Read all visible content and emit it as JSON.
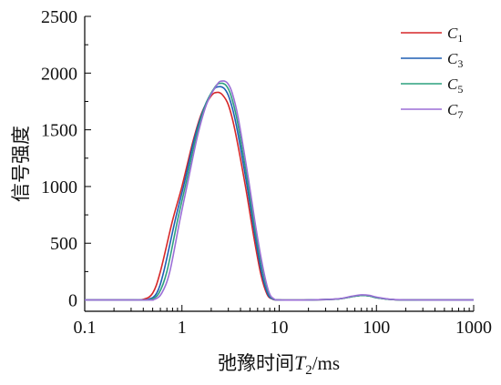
{
  "chart_data": {
    "type": "line",
    "title": "",
    "xlabel_main": "弛豫时间",
    "xlabel_var": "T",
    "xlabel_sub": "2",
    "xlabel_unit": "/ms",
    "ylabel": "信号强度",
    "x_scale": "log",
    "xlim": [
      0.1,
      1000
    ],
    "ylim": [
      -100,
      2500
    ],
    "x_ticks": [
      0.1,
      1,
      10,
      100,
      1000
    ],
    "x_tick_labels": [
      "0.1",
      "1",
      "10",
      "100",
      "1000"
    ],
    "y_ticks": [
      0,
      500,
      1000,
      1500,
      2000,
      2500
    ],
    "y_tick_labels": [
      "0",
      "500",
      "1000",
      "1500",
      "2000",
      "2500"
    ],
    "grid": false,
    "legend_position": "top-right",
    "series": [
      {
        "name": "C",
        "subscript": "1",
        "color": "#d62728",
        "x": [
          0.1,
          0.3,
          0.4,
          0.5,
          0.6,
          0.8,
          1,
          1.3,
          1.6,
          2,
          2.3,
          2.6,
          3,
          3.5,
          4.5,
          5.5,
          6.5,
          7.5,
          8.5,
          10,
          20,
          40,
          55,
          70,
          85,
          100,
          150,
          300,
          1000
        ],
        "y": [
          0,
          0,
          5,
          60,
          250,
          700,
          1000,
          1400,
          1650,
          1800,
          1830,
          1810,
          1720,
          1500,
          1000,
          550,
          220,
          50,
          8,
          0,
          0,
          8,
          28,
          40,
          35,
          20,
          3,
          0,
          0
        ]
      },
      {
        "name": "C",
        "subscript": "3",
        "color": "#1f5fb4",
        "x": [
          0.1,
          0.35,
          0.45,
          0.55,
          0.65,
          0.85,
          1.05,
          1.35,
          1.7,
          2.1,
          2.4,
          2.75,
          3.1,
          3.6,
          4.6,
          5.6,
          6.6,
          7.6,
          8.6,
          10,
          20,
          40,
          55,
          70,
          85,
          100,
          150,
          300,
          1000
        ],
        "y": [
          0,
          0,
          5,
          60,
          250,
          700,
          1020,
          1430,
          1700,
          1850,
          1880,
          1860,
          1770,
          1550,
          1040,
          580,
          240,
          55,
          8,
          0,
          0,
          8,
          28,
          40,
          35,
          20,
          3,
          0,
          0
        ]
      },
      {
        "name": "C",
        "subscript": "5",
        "color": "#2ca07f",
        "x": [
          0.1,
          0.38,
          0.48,
          0.58,
          0.7,
          0.9,
          1.1,
          1.4,
          1.75,
          2.2,
          2.5,
          2.85,
          3.2,
          3.7,
          4.7,
          5.7,
          6.8,
          7.8,
          8.8,
          10,
          20,
          40,
          55,
          70,
          85,
          100,
          150,
          300,
          1000
        ],
        "y": [
          0,
          0,
          5,
          60,
          250,
          700,
          1030,
          1440,
          1720,
          1880,
          1910,
          1890,
          1800,
          1580,
          1060,
          600,
          250,
          60,
          8,
          0,
          0,
          8,
          28,
          40,
          35,
          20,
          3,
          0,
          0
        ]
      },
      {
        "name": "C",
        "subscript": "7",
        "color": "#9b6fd6",
        "x": [
          0.1,
          0.42,
          0.52,
          0.62,
          0.75,
          0.95,
          1.15,
          1.45,
          1.8,
          2.3,
          2.6,
          2.95,
          3.3,
          3.8,
          4.8,
          5.8,
          6.9,
          7.9,
          8.9,
          10,
          20,
          40,
          55,
          70,
          85,
          100,
          150,
          300,
          1000
        ],
        "y": [
          0,
          0,
          5,
          60,
          250,
          700,
          1040,
          1450,
          1730,
          1900,
          1930,
          1910,
          1820,
          1600,
          1080,
          620,
          260,
          62,
          8,
          0,
          0,
          10,
          32,
          45,
          40,
          25,
          4,
          0,
          0
        ]
      }
    ]
  }
}
